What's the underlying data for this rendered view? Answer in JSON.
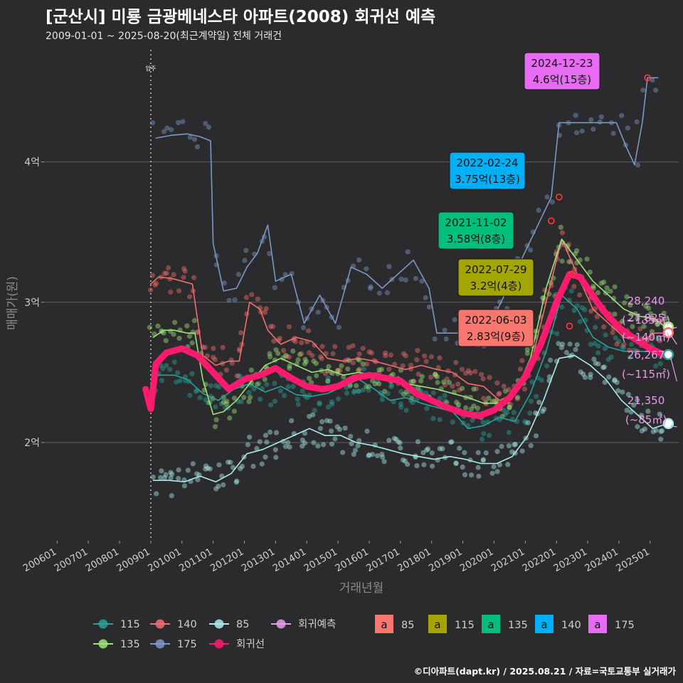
{
  "title": "[군산시] 미룡 금광베네스타 아파트(2008) 회귀선 예측",
  "subtitle": "2009-01-01 ~ 2025-08-20(최근계약일) 전체 거래건",
  "credit": "©디아파트(dapt.kr) / 2025.08.21 / 자료=국토교통부 실거래가",
  "chart_data": {
    "type": "line",
    "xlabel": "거래년월",
    "ylabel": "매매가(원)",
    "x_range": [
      "2005-08",
      "2025-12"
    ],
    "ylim": [
      1.3,
      4.85
    ],
    "y_ticks": [
      {
        "value": 2,
        "label": "2억"
      },
      {
        "value": 3,
        "label": "3억"
      },
      {
        "value": 4,
        "label": "4억"
      }
    ],
    "x_ticks": [
      "200601",
      "200701",
      "200801",
      "200901",
      "201001",
      "201101",
      "201201",
      "201301",
      "201401",
      "201501",
      "201601",
      "201701",
      "201801",
      "201901",
      "202001",
      "202101",
      "202201",
      "202301",
      "202401",
      "202501"
    ],
    "grid": true,
    "vline": {
      "x": "2009-01",
      "label": "입주"
    },
    "colors": {
      "115": "#2aa198",
      "140": "#f26d6d",
      "85": "#a8ecec",
      "135": "#9ee27a",
      "175": "#7b98c4",
      "regression": "#ff1a6e",
      "forecast": "#e89be8"
    },
    "series": [
      {
        "name": "115",
        "points": [
          [
            "2009-02",
            2.48
          ],
          [
            "2009-06",
            2.48
          ],
          [
            "2009-10",
            2.48
          ],
          [
            "2010-03",
            2.45
          ],
          [
            "2010-09",
            2.35
          ],
          [
            "2011-03",
            2.3
          ],
          [
            "2011-09",
            2.38
          ],
          [
            "2012-03",
            2.42
          ],
          [
            "2012-09",
            2.36
          ],
          [
            "2013-03",
            2.4
          ],
          [
            "2013-09",
            2.34
          ],
          [
            "2014-03",
            2.33
          ],
          [
            "2014-09",
            2.35
          ],
          [
            "2015-03",
            2.4
          ],
          [
            "2015-09",
            2.45
          ],
          [
            "2016-03",
            2.38
          ],
          [
            "2016-09",
            2.3
          ],
          [
            "2017-03",
            2.32
          ],
          [
            "2017-09",
            2.28
          ],
          [
            "2018-03",
            2.25
          ],
          [
            "2018-09",
            2.22
          ],
          [
            "2019-03",
            2.1
          ],
          [
            "2019-09",
            2.12
          ],
          [
            "2020-03",
            2.18
          ],
          [
            "2020-09",
            2.15
          ],
          [
            "2021-03",
            2.35
          ],
          [
            "2021-09",
            2.65
          ],
          [
            "2022-03",
            3.05
          ],
          [
            "2022-09",
            2.95
          ],
          [
            "2023-03",
            2.75
          ],
          [
            "2023-09",
            2.68
          ],
          [
            "2024-03",
            2.65
          ],
          [
            "2024-09",
            2.65
          ],
          [
            "2025-03",
            2.65
          ],
          [
            "2025-07",
            2.62
          ]
        ]
      },
      {
        "name": "140",
        "points": [
          [
            "2009-01",
            3.13
          ],
          [
            "2009-04",
            3.18
          ],
          [
            "2009-09",
            3.17
          ],
          [
            "2010-01",
            3.15
          ],
          [
            "2010-05",
            3.13
          ],
          [
            "2010-09",
            2.62
          ],
          [
            "2011-02",
            2.55
          ],
          [
            "2011-07",
            2.58
          ],
          [
            "2011-11",
            2.58
          ],
          [
            "2012-03",
            3.0
          ],
          [
            "2012-07",
            2.95
          ],
          [
            "2012-10",
            2.8
          ],
          [
            "2013-03",
            2.7
          ],
          [
            "2013-09",
            2.75
          ],
          [
            "2014-03",
            2.72
          ],
          [
            "2014-09",
            2.6
          ],
          [
            "2015-03",
            2.58
          ],
          [
            "2015-09",
            2.6
          ],
          [
            "2016-03",
            2.58
          ],
          [
            "2016-09",
            2.55
          ],
          [
            "2017-03",
            2.52
          ],
          [
            "2017-09",
            2.55
          ],
          [
            "2018-03",
            2.52
          ],
          [
            "2018-09",
            2.5
          ],
          [
            "2019-03",
            2.42
          ],
          [
            "2019-09",
            2.4
          ],
          [
            "2020-03",
            2.3
          ],
          [
            "2020-09",
            2.35
          ],
          [
            "2021-03",
            2.55
          ],
          [
            "2021-09",
            3.0
          ],
          [
            "2022-03",
            3.45
          ],
          [
            "2022-09",
            3.2
          ],
          [
            "2023-03",
            2.95
          ],
          [
            "2023-09",
            2.85
          ],
          [
            "2024-03",
            2.75
          ],
          [
            "2024-09",
            2.72
          ],
          [
            "2025-03",
            2.78
          ],
          [
            "2025-07",
            2.78
          ]
        ]
      },
      {
        "name": "85",
        "points": [
          [
            "2009-02",
            1.73
          ],
          [
            "2009-08",
            1.73
          ],
          [
            "2010-02",
            1.72
          ],
          [
            "2010-08",
            1.76
          ],
          [
            "2011-02",
            1.72
          ],
          [
            "2011-08",
            1.78
          ],
          [
            "2012-02",
            1.92
          ],
          [
            "2012-08",
            1.95
          ],
          [
            "2013-02",
            2.0
          ],
          [
            "2013-08",
            2.05
          ],
          [
            "2014-02",
            2.1
          ],
          [
            "2014-08",
            2.05
          ],
          [
            "2015-02",
            2.05
          ],
          [
            "2015-08",
            2.0
          ],
          [
            "2016-02",
            1.98
          ],
          [
            "2016-08",
            1.95
          ],
          [
            "2017-02",
            1.92
          ],
          [
            "2017-08",
            1.9
          ],
          [
            "2018-02",
            1.88
          ],
          [
            "2018-08",
            1.9
          ],
          [
            "2019-02",
            1.88
          ],
          [
            "2019-08",
            1.85
          ],
          [
            "2020-02",
            1.85
          ],
          [
            "2020-08",
            1.9
          ],
          [
            "2021-02",
            2.05
          ],
          [
            "2021-08",
            2.3
          ],
          [
            "2022-02",
            2.6
          ],
          [
            "2022-08",
            2.62
          ],
          [
            "2023-02",
            2.55
          ],
          [
            "2023-08",
            2.45
          ],
          [
            "2024-02",
            2.3
          ],
          [
            "2024-08",
            2.2
          ],
          [
            "2025-02",
            2.1
          ],
          [
            "2025-07",
            2.13
          ]
        ]
      },
      {
        "name": "135",
        "points": [
          [
            "2009-02",
            2.75
          ],
          [
            "2009-06",
            2.8
          ],
          [
            "2009-10",
            2.8
          ],
          [
            "2010-03",
            2.78
          ],
          [
            "2010-06",
            2.78
          ],
          [
            "2010-09",
            2.45
          ],
          [
            "2011-01",
            2.2
          ],
          [
            "2011-05",
            2.22
          ],
          [
            "2011-10",
            2.3
          ],
          [
            "2012-03",
            2.42
          ],
          [
            "2012-09",
            2.55
          ],
          [
            "2013-03",
            2.6
          ],
          [
            "2013-09",
            2.55
          ],
          [
            "2014-03",
            2.5
          ],
          [
            "2014-09",
            2.52
          ],
          [
            "2015-03",
            2.48
          ],
          [
            "2015-09",
            2.5
          ],
          [
            "2016-03",
            2.48
          ],
          [
            "2016-09",
            2.45
          ],
          [
            "2017-03",
            2.42
          ],
          [
            "2017-09",
            2.4
          ],
          [
            "2018-03",
            2.38
          ],
          [
            "2018-09",
            2.35
          ],
          [
            "2019-03",
            2.32
          ],
          [
            "2019-09",
            2.28
          ],
          [
            "2020-03",
            2.28
          ],
          [
            "2020-09",
            2.35
          ],
          [
            "2021-03",
            2.6
          ],
          [
            "2021-09",
            3.1
          ],
          [
            "2022-03",
            3.45
          ],
          [
            "2022-09",
            3.3
          ],
          [
            "2023-03",
            3.15
          ],
          [
            "2023-09",
            3.05
          ],
          [
            "2024-03",
            2.95
          ],
          [
            "2024-09",
            2.9
          ],
          [
            "2025-03",
            2.88
          ],
          [
            "2025-07",
            2.82
          ]
        ]
      },
      {
        "name": "175",
        "points": [
          [
            "2009-03",
            4.17
          ],
          [
            "2009-09",
            4.19
          ],
          [
            "2010-03",
            4.2
          ],
          [
            "2010-08",
            4.18
          ],
          [
            "2010-12",
            4.15
          ],
          [
            "2011-01",
            3.42
          ],
          [
            "2011-05",
            3.08
          ],
          [
            "2011-10",
            3.1
          ],
          [
            "2012-02",
            3.25
          ],
          [
            "2012-06",
            3.35
          ],
          [
            "2012-10",
            3.55
          ],
          [
            "2013-01",
            3.15
          ],
          [
            "2013-07",
            3.2
          ],
          [
            "2013-12",
            2.85
          ],
          [
            "2014-06",
            3.05
          ],
          [
            "2014-12",
            2.85
          ],
          [
            "2015-06",
            3.25
          ],
          [
            "2015-12",
            3.2
          ],
          [
            "2016-06",
            3.1
          ],
          [
            "2016-12",
            3.2
          ],
          [
            "2017-06",
            3.3
          ],
          [
            "2017-12",
            3.1
          ],
          [
            "2018-03",
            2.78
          ],
          [
            "2018-09",
            2.78
          ],
          [
            "2019-03",
            2.78
          ],
          [
            "2019-10",
            2.78
          ],
          [
            "2021-11",
            3.75
          ],
          [
            "2022-02",
            4.28
          ],
          [
            "2022-06",
            4.28
          ],
          [
            "2022-10",
            4.28
          ],
          [
            "2023-12",
            4.28
          ],
          [
            "2024-04",
            4.1
          ],
          [
            "2024-07",
            3.98
          ],
          [
            "2024-10",
            4.28
          ],
          [
            "2024-12",
            4.6
          ],
          [
            "2025-04",
            4.6
          ]
        ]
      },
      {
        "name": "회귀선",
        "points": [
          [
            "2008-11",
            2.38
          ],
          [
            "2009-01",
            2.24
          ],
          [
            "2009-03",
            2.56
          ],
          [
            "2009-07",
            2.64
          ],
          [
            "2010-01",
            2.67
          ],
          [
            "2010-07",
            2.62
          ],
          [
            "2011-01",
            2.5
          ],
          [
            "2011-07",
            2.38
          ],
          [
            "2012-01",
            2.45
          ],
          [
            "2012-07",
            2.48
          ],
          [
            "2013-01",
            2.53
          ],
          [
            "2013-07",
            2.46
          ],
          [
            "2014-01",
            2.4
          ],
          [
            "2014-07",
            2.38
          ],
          [
            "2015-01",
            2.4
          ],
          [
            "2015-07",
            2.46
          ],
          [
            "2016-01",
            2.48
          ],
          [
            "2016-07",
            2.46
          ],
          [
            "2017-01",
            2.44
          ],
          [
            "2017-07",
            2.35
          ],
          [
            "2018-01",
            2.3
          ],
          [
            "2018-07",
            2.25
          ],
          [
            "2019-01",
            2.21
          ],
          [
            "2019-07",
            2.19
          ],
          [
            "2020-01",
            2.23
          ],
          [
            "2020-07",
            2.32
          ],
          [
            "2021-01",
            2.47
          ],
          [
            "2021-07",
            2.7
          ],
          [
            "2022-01",
            3.0
          ],
          [
            "2022-06",
            3.2
          ],
          [
            "2022-10",
            3.18
          ],
          [
            "2023-01",
            3.1
          ],
          [
            "2023-07",
            2.94
          ],
          [
            "2024-01",
            2.82
          ],
          [
            "2024-07",
            2.74
          ],
          [
            "2025-01",
            2.67
          ],
          [
            "2025-07",
            2.62
          ]
        ]
      }
    ],
    "forecast_labels": [
      {
        "value": "28,240",
        "area": "(~135㎡)",
        "y": 2.824
      },
      {
        "value": "27,825",
        "area": "(~140㎡)",
        "y": 2.7825
      },
      {
        "value": "26,267",
        "area": "(~115㎡)",
        "y": 2.6267
      },
      {
        "value": "21,350",
        "area": "(~85㎡)",
        "y": 2.135
      }
    ],
    "annotations": [
      {
        "date": "2024-12-23",
        "price": "4.6억(15층)",
        "size": "175",
        "x": "2024-12",
        "y": 4.6
      },
      {
        "date": "2022-02-24",
        "price": "3.75억(13층)",
        "size": "140",
        "x": "2022-02",
        "y": 3.75
      },
      {
        "date": "2021-11-02",
        "price": "3.58억(8층)",
        "size": "135",
        "x": "2021-11",
        "y": 3.58
      },
      {
        "date": "2022-07-29",
        "price": "3.2억(4층)",
        "size": "115",
        "x": "2022-07",
        "y": 3.2
      },
      {
        "date": "2022-06-03",
        "price": "2.83억(9층)",
        "size": "85",
        "x": "2022-06",
        "y": 2.83
      }
    ],
    "legend_lines": [
      "115",
      "140",
      "85",
      "회귀예측",
      "135",
      "175",
      "회귀선"
    ],
    "legend_boxes": [
      {
        "label": "85",
        "color": "#f8766d"
      },
      {
        "label": "115",
        "color": "#a3a500"
      },
      {
        "label": "135",
        "color": "#00bf7d"
      },
      {
        "label": "140",
        "color": "#00b0f6"
      },
      {
        "label": "175",
        "color": "#e76bf3"
      }
    ],
    "legend_box_glyph": "a"
  }
}
